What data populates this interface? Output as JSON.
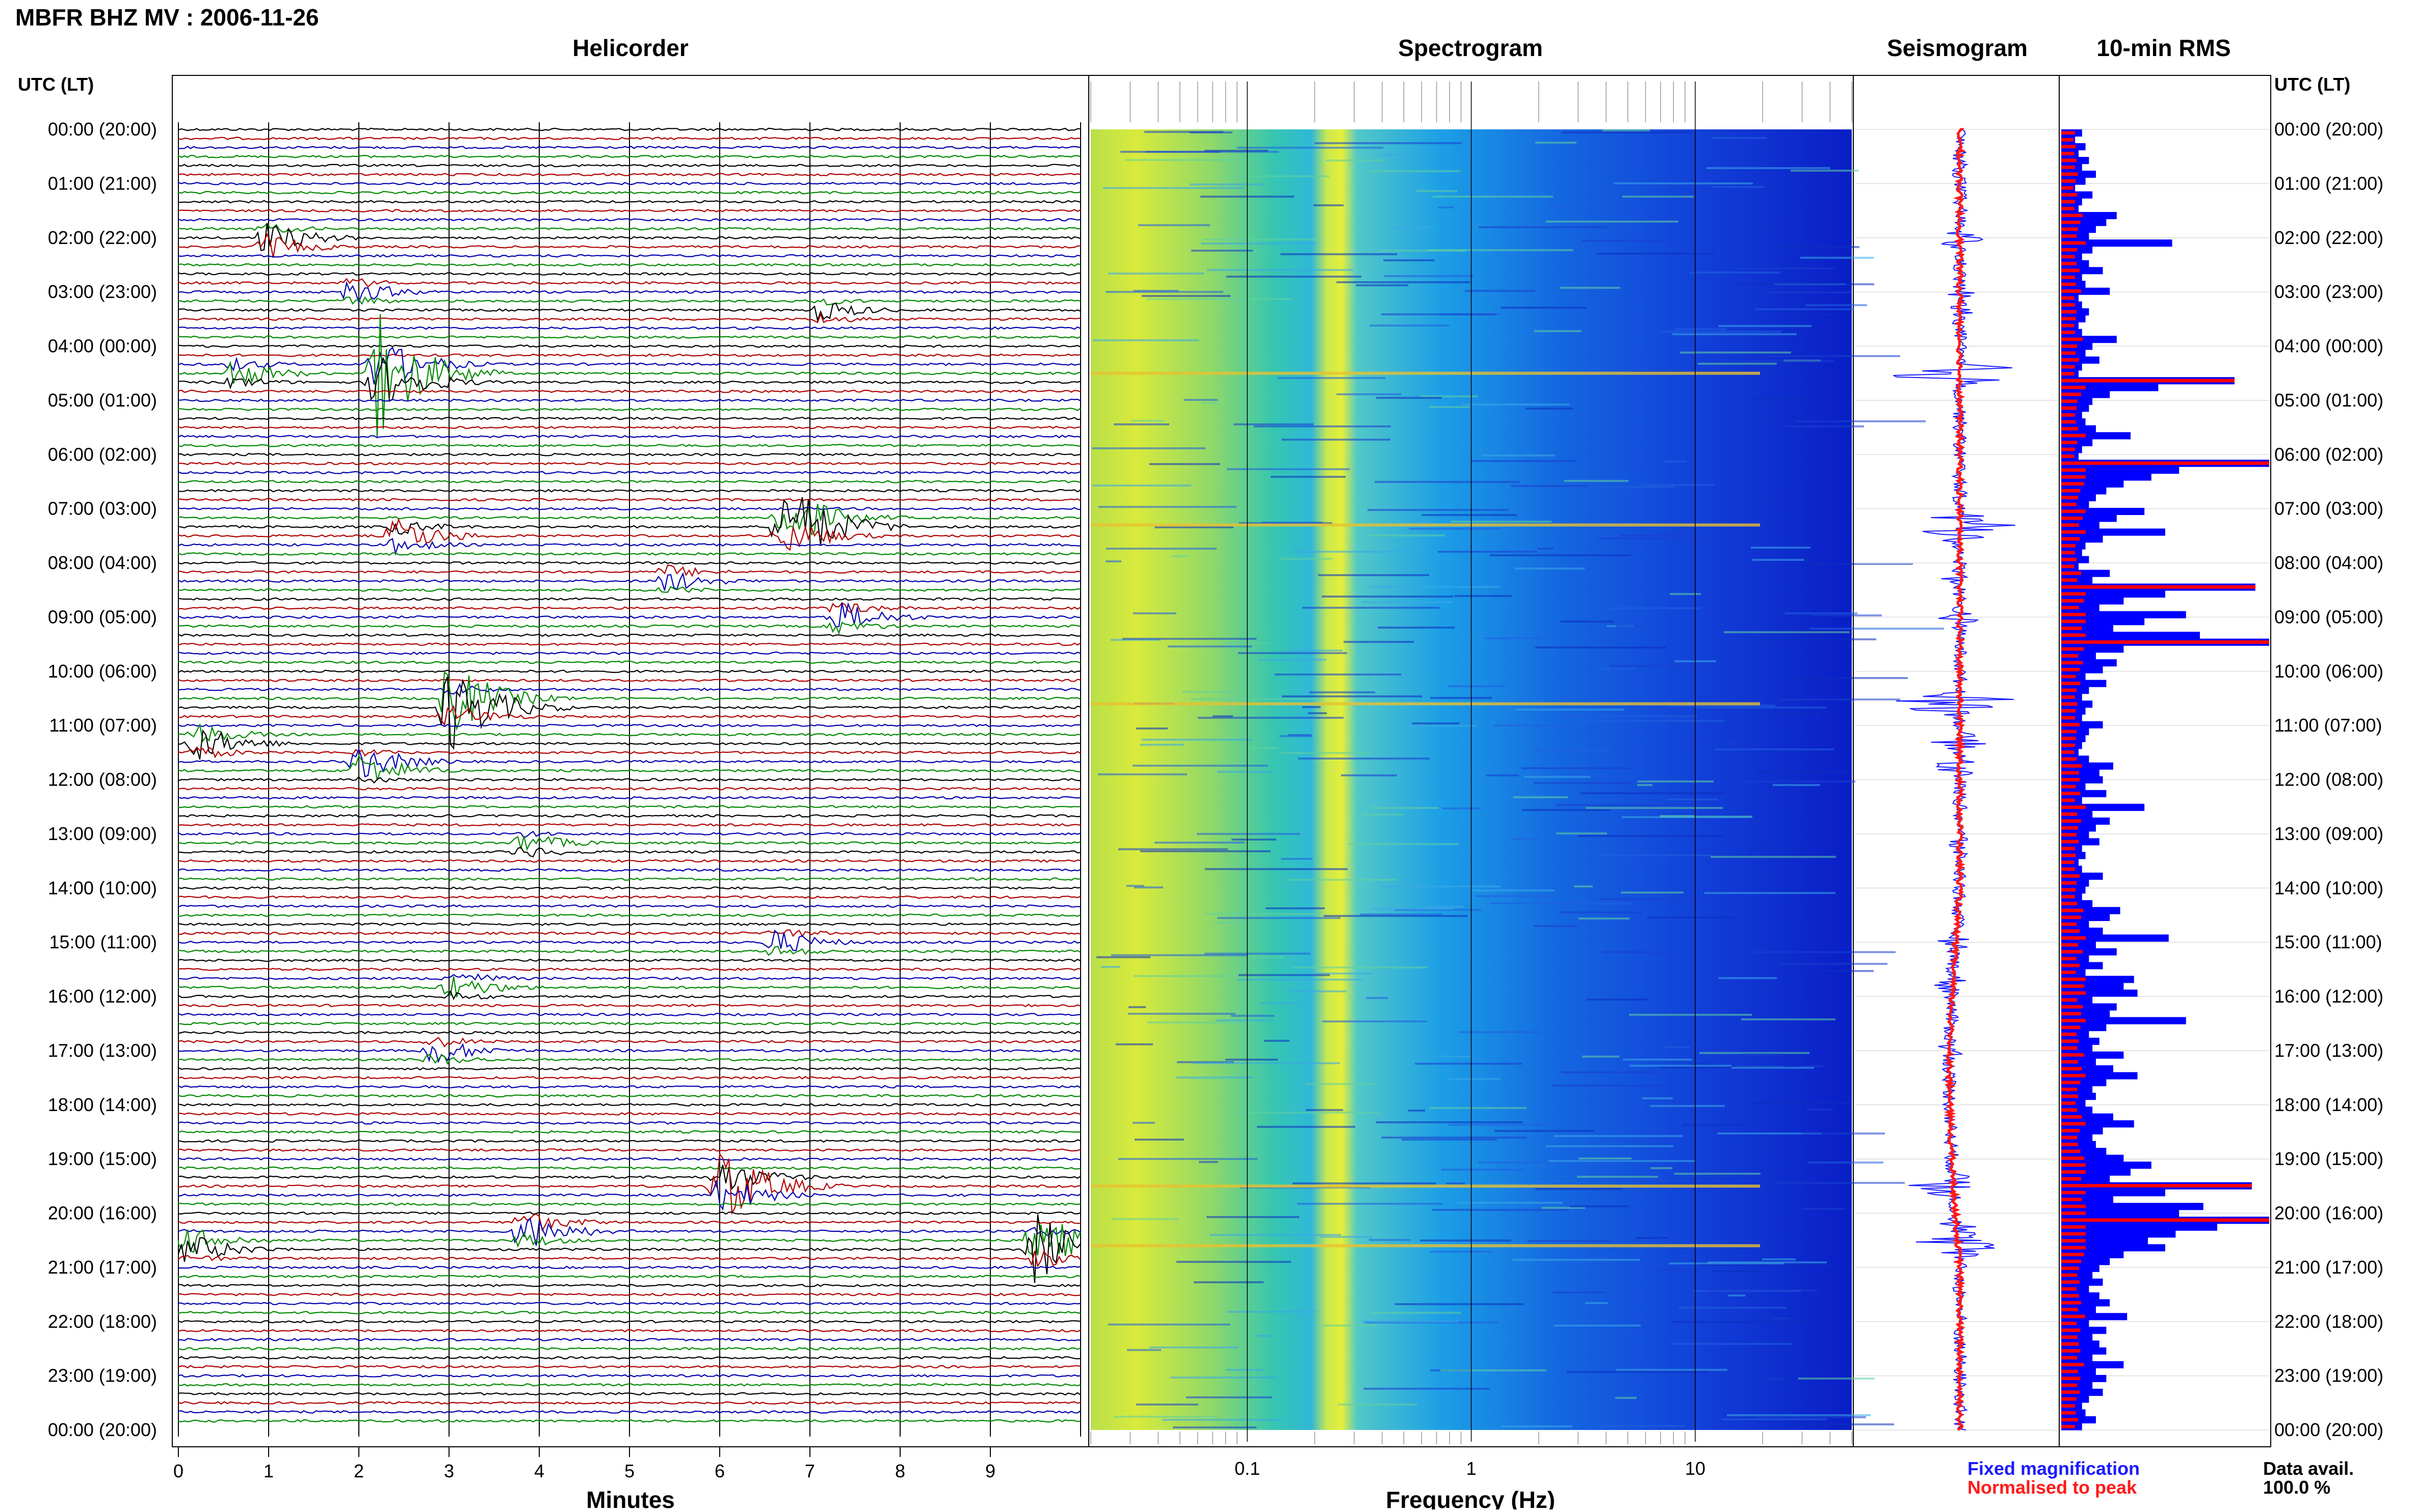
{
  "page": {
    "title": "MBFR BHZ MV : 2006-11-26",
    "data_avail_label": "Data avail.",
    "data_avail_value": "100.0 %"
  },
  "panels": {
    "helicorder": "Helicorder",
    "spectrogram": "Spectrogram",
    "seismogram": "Seismogram",
    "rms": "10-min RMS"
  },
  "axes": {
    "utc_header": "UTC (LT)",
    "minutes_label": "Minutes",
    "frequency_label": "Frequency (Hz)",
    "minute_ticks": [
      "0",
      "1",
      "2",
      "3",
      "4",
      "5",
      "6",
      "7",
      "8",
      "9"
    ],
    "freq_ticks": [
      "0.1",
      "1",
      "10"
    ]
  },
  "time_labels": [
    "00:00 (20:00)",
    "01:00 (21:00)",
    "02:00 (22:00)",
    "03:00 (23:00)",
    "04:00 (00:00)",
    "05:00 (01:00)",
    "06:00 (02:00)",
    "07:00 (03:00)",
    "08:00 (04:00)",
    "09:00 (05:00)",
    "10:00 (06:00)",
    "11:00 (07:00)",
    "12:00 (08:00)",
    "13:00 (09:00)",
    "14:00 (10:00)",
    "15:00 (11:00)",
    "16:00 (12:00)",
    "17:00 (13:00)",
    "18:00 (14:00)",
    "19:00 (15:00)",
    "20:00 (16:00)",
    "21:00 (17:00)",
    "22:00 (18:00)",
    "23:00 (19:00)",
    "00:00 (20:00)"
  ],
  "legend": {
    "fixed": "Fixed magnification",
    "fixed_color": "#1a1aff",
    "normalised": "Normalised to peak",
    "normalised_color": "#ff1a1a"
  },
  "colors": {
    "trace_cycle": [
      "#000000",
      "#b00000",
      "#0000b0",
      "#008800"
    ],
    "rms_fixed": "#0000ff",
    "rms_norm": "#ff0000"
  },
  "chart_data": {
    "type": "heatmap",
    "x_minutes": [
      0,
      10
    ],
    "y_hours": [
      0,
      24
    ],
    "freq_range_hz": [
      0.02,
      50
    ],
    "freq_scale": "log",
    "events": [
      {
        "hour": 2.05,
        "minute": 0.95,
        "amp": 2.0
      },
      {
        "hour": 3.0,
        "minute": 1.9,
        "amp": 1.2
      },
      {
        "hour": 3.35,
        "minute": 7.1,
        "amp": 1.1
      },
      {
        "hour": 4.5,
        "minute": 2.2,
        "amp": 6.0
      },
      {
        "hour": 4.5,
        "minute": 0.6,
        "amp": 1.4
      },
      {
        "hour": 7.3,
        "minute": 6.7,
        "amp": 5.5
      },
      {
        "hour": 7.5,
        "minute": 2.4,
        "amp": 1.8
      },
      {
        "hour": 8.3,
        "minute": 5.4,
        "amp": 1.3
      },
      {
        "hour": 9.0,
        "minute": 7.3,
        "amp": 1.6
      },
      {
        "hour": 10.6,
        "minute": 3.0,
        "amp": 5.5
      },
      {
        "hour": 11.3,
        "minute": 0.2,
        "amp": 2.0
      },
      {
        "hour": 11.75,
        "minute": 2.0,
        "amp": 2.5
      },
      {
        "hour": 13.2,
        "minute": 3.8,
        "amp": 1.2
      },
      {
        "hour": 15.0,
        "minute": 6.6,
        "amp": 1.3
      },
      {
        "hour": 15.8,
        "minute": 3.0,
        "amp": 1.5
      },
      {
        "hour": 17.0,
        "minute": 2.8,
        "amp": 1.4
      },
      {
        "hour": 19.5,
        "minute": 6.0,
        "amp": 4.0
      },
      {
        "hour": 20.3,
        "minute": 3.8,
        "amp": 2.2
      },
      {
        "hour": 20.6,
        "minute": 0.1,
        "amp": 2.0
      },
      {
        "hour": 20.6,
        "minute": 9.5,
        "amp": 4.5
      }
    ],
    "rms_fixed": [
      0.6,
      0.4,
      0.7,
      0.5,
      0.8,
      0.6,
      1.0,
      0.7,
      0.4,
      0.9,
      0.6,
      0.5,
      1.6,
      1.3,
      1.0,
      0.8,
      3.2,
      0.9,
      0.6,
      0.8,
      1.2,
      0.6,
      0.7,
      1.4,
      0.5,
      0.6,
      0.8,
      0.7,
      0.5,
      0.6,
      1.6,
      0.9,
      0.7,
      1.1,
      0.6,
      0.5,
      5.0,
      2.8,
      1.4,
      0.9,
      0.8,
      0.6,
      0.7,
      1.0,
      2.0,
      0.9,
      0.6,
      0.5,
      6.0,
      3.4,
      2.6,
      1.8,
      1.3,
      1.0,
      0.8,
      2.4,
      1.6,
      1.1,
      3.0,
      1.2,
      0.7,
      0.6,
      0.8,
      0.5,
      1.4,
      0.9,
      5.6,
      3.0,
      1.8,
      1.1,
      3.6,
      2.4,
      1.5,
      4.0,
      6.0,
      1.8,
      1.0,
      1.6,
      1.2,
      0.7,
      1.3,
      0.8,
      0.6,
      0.9,
      0.7,
      0.6,
      1.2,
      0.8,
      0.7,
      0.6,
      0.5,
      0.8,
      1.5,
      1.1,
      1.2,
      0.7,
      1.3,
      0.6,
      2.4,
      0.9,
      1.4,
      1.0,
      0.8,
      1.1,
      0.6,
      0.7,
      0.5,
      0.6,
      1.2,
      0.8,
      0.7,
      0.6,
      0.9,
      1.7,
      1.4,
      0.8,
      1.2,
      3.1,
      1.0,
      1.6,
      0.8,
      1.2,
      0.7,
      2.1,
      1.8,
      2.2,
      0.9,
      1.6,
      1.4,
      3.6,
      1.3,
      0.8,
      1.1,
      0.9,
      1.8,
      1.0,
      1.5,
      2.2,
      1.3,
      0.9,
      1.0,
      0.7,
      0.9,
      1.5,
      2.1,
      1.2,
      0.9,
      1.0,
      1.3,
      1.8,
      2.6,
      2.0,
      1.4,
      5.5,
      3.0,
      1.5,
      4.1,
      3.4,
      6.0,
      4.5,
      3.3,
      2.5,
      3.0,
      1.8,
      1.4,
      1.1,
      0.9,
      1.2,
      0.8,
      1.1,
      1.4,
      1.0,
      1.9,
      0.8,
      1.3,
      0.9,
      1.1,
      1.3,
      0.9,
      1.8,
      1.0,
      1.3,
      0.9,
      1.2,
      0.8,
      0.6,
      0.7,
      1.0,
      0.6
    ]
  }
}
